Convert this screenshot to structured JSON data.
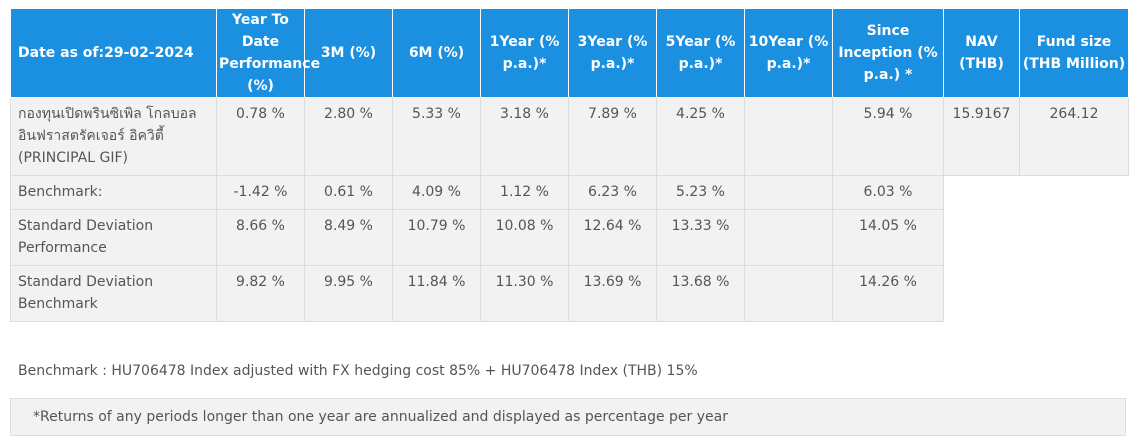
{
  "table": {
    "headers": [
      "Date as of:29-02-2024",
      "Year To Date Performance (%)",
      "3M (%)",
      "6M (%)",
      "1Year (% p.a.)*",
      "3Year (% p.a.)*",
      "5Year (% p.a.)*",
      "10Year (% p.a.)*",
      "Since Inception (% p.a.) *",
      "NAV (THB)",
      "Fund size (THB Million)"
    ],
    "rows": [
      {
        "label": "กองทุนเปิดพรินซิเพิล โกลบอล อินฟราสตรัคเจอร์ อิควิตี้ (PRINCIPAL GIF)",
        "cells": [
          "0.78 %",
          "2.80 %",
          "5.33 %",
          "3.18 %",
          "7.89 %",
          "4.25 %",
          "",
          "5.94 %",
          "15.9167",
          "264.12"
        ]
      },
      {
        "label": "Benchmark:",
        "cells": [
          "-1.42 %",
          "0.61 %",
          "4.09 %",
          "1.12 %",
          "6.23 %",
          "5.23 %",
          "",
          "6.03 %"
        ]
      },
      {
        "label": "Standard Deviation Performance",
        "cells": [
          "8.66 %",
          "8.49 %",
          "10.79 %",
          "10.08 %",
          "12.64 %",
          "13.33 %",
          "",
          "14.05 %"
        ]
      },
      {
        "label": "Standard Deviation Benchmark",
        "cells": [
          "9.82 %",
          "9.95 %",
          "11.84 %",
          "11.30 %",
          "13.69 %",
          "13.68 %",
          "",
          "14.26 %"
        ]
      }
    ]
  },
  "footnote": "Benchmark : HU706478 Index adjusted with FX hedging cost 85% + HU706478 Index (THB) 15%",
  "note": "*Returns of any periods longer than one year are annualized and displayed as percentage per year",
  "colors": {
    "header_bg": "#1b8fe0",
    "cell_bg": "#f2f2f2",
    "text": "#555555"
  }
}
